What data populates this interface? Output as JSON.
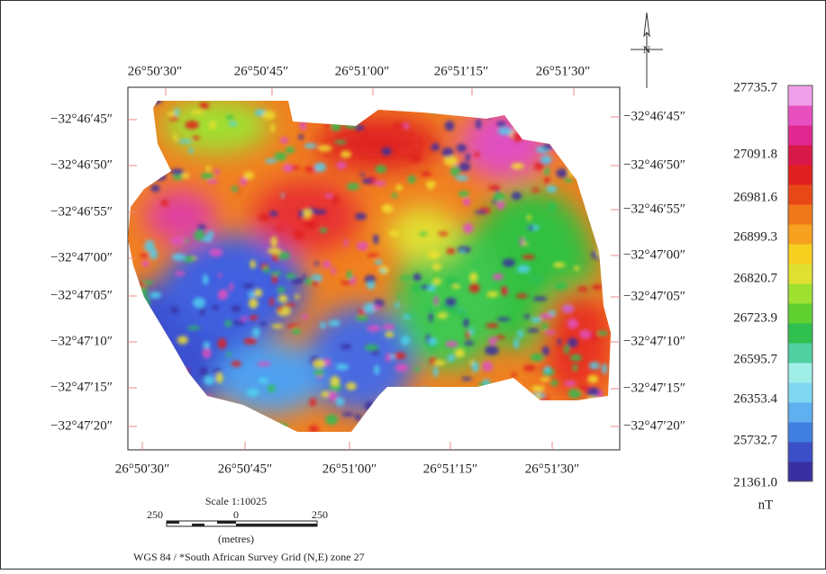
{
  "top_labels": [
    "26°50′30″",
    "26°50′45″",
    "26°51′00″",
    "26°51′15″",
    "26°51′30″"
  ],
  "bottom_labels": [
    "26°50′30″",
    "26°50′45″",
    "26°51′00″",
    "26°51′15″",
    "26°51′30″"
  ],
  "left_labels": [
    "−32°46′45″",
    "−32°46′50″",
    "−32°46′55″",
    "−32°47′00″",
    "−32°47′05″",
    "−32°47′10″",
    "−32°47′15″",
    "−32°47′20″"
  ],
  "right_labels": [
    "−32°46′45″",
    "−32°46′50″",
    "−32°46′55″",
    "−32°47′00″",
    "−32°47′05″",
    "−32°47′10″",
    "−32°47′15″",
    "−32°47′20″"
  ],
  "colorbar": {
    "labels": [
      "27735.7",
      "27091.8",
      "26981.6",
      "26899.3",
      "26820.7",
      "26723.9",
      "26595.7",
      "26353.4",
      "25732.7",
      "21361.0"
    ],
    "unit": "nT"
  },
  "north_label": "N",
  "scale": {
    "title": "Scale 1:10025",
    "ticks": [
      "250",
      "0",
      "250"
    ],
    "unit": "(metres)"
  },
  "projection": "WGS 84 / *South African Survey Grid (N,E) zone 27"
}
